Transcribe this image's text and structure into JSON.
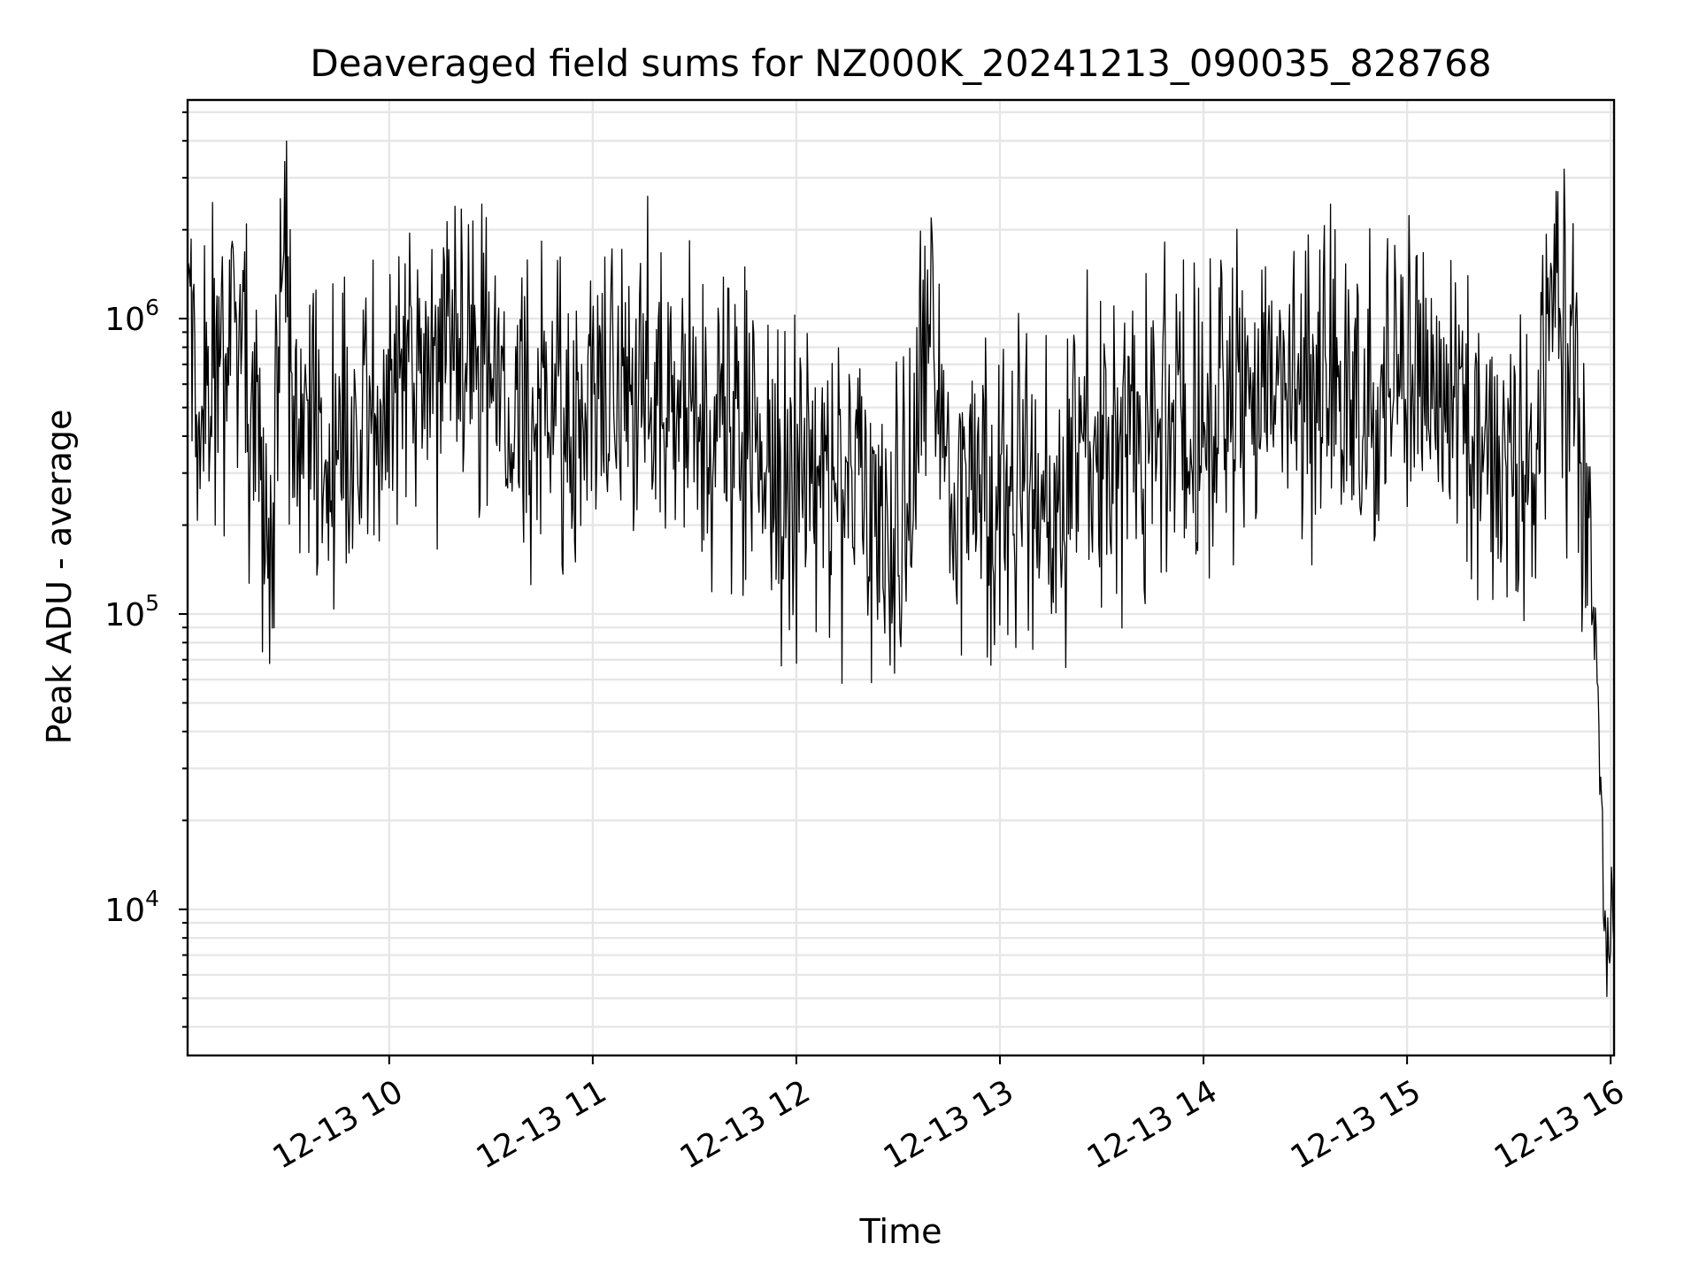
{
  "chart_data": {
    "type": "line",
    "title": "Deaveraged field sums for NZ000K_20241213_090035_828768",
    "xlabel": "Time",
    "ylabel": "Peak ADU - average",
    "yscale": "log",
    "grid": "on",
    "xlim": [
      "2024-12-13 09:00:35",
      "2024-12-13 16:01:00"
    ],
    "ylim": [
      3200,
      5500000
    ],
    "x_tick_labels": [
      "12-13 10",
      "12-13 11",
      "12-13 12",
      "12-13 13",
      "12-13 14",
      "12-13 15",
      "12-13 16"
    ],
    "x_tick_hours": [
      10,
      11,
      12,
      13,
      14,
      15,
      16
    ],
    "y_ticks": [
      {
        "base": "10",
        "exp": "4",
        "value": 10000
      },
      {
        "base": "10",
        "exp": "5",
        "value": 100000
      },
      {
        "base": "10",
        "exp": "6",
        "value": 1000000
      }
    ],
    "series": [
      {
        "color": "#000000",
        "x": [
          "09:00",
          "09:05",
          "09:10",
          "09:15",
          "09:20",
          "09:23",
          "09:25",
          "09:28",
          "09:30",
          "09:32",
          "09:35",
          "09:38",
          "09:40",
          "09:45",
          "09:50",
          "09:55",
          "10:00",
          "10:05",
          "10:10",
          "10:15",
          "10:20",
          "10:25",
          "10:30",
          "10:35",
          "10:40",
          "10:45",
          "10:50",
          "10:55",
          "11:00",
          "11:05",
          "11:10",
          "11:15",
          "11:20",
          "11:25",
          "11:30",
          "11:35",
          "11:40",
          "11:45",
          "11:50",
          "11:55",
          "12:00",
          "12:05",
          "12:10",
          "12:15",
          "12:20",
          "12:25",
          "12:30",
          "12:35",
          "12:40",
          "12:45",
          "12:50",
          "12:55",
          "13:00",
          "13:05",
          "13:10",
          "13:15",
          "13:20",
          "13:25",
          "13:30",
          "13:35",
          "13:40",
          "13:45",
          "13:50",
          "13:55",
          "14:00",
          "14:05",
          "14:10",
          "14:15",
          "14:20",
          "14:25",
          "14:30",
          "14:35",
          "14:40",
          "14:45",
          "14:50",
          "14:55",
          "15:00",
          "15:05",
          "15:10",
          "15:15",
          "15:20",
          "15:25",
          "15:30",
          "15:35",
          "15:38",
          "15:40",
          "15:42",
          "15:45",
          "15:47",
          "15:50",
          "15:52",
          "15:54",
          "15:56",
          "15:58",
          "16:00"
        ],
        "y": [
          650000,
          700000,
          580000,
          720000,
          600000,
          180000,
          110000,
          1400000,
          1100000,
          500000,
          350000,
          450000,
          300000,
          400000,
          350000,
          450000,
          500000,
          650000,
          700000,
          800000,
          750000,
          600000,
          650000,
          550000,
          450000,
          420000,
          500000,
          480000,
          550000,
          500000,
          450000,
          600000,
          520000,
          500000,
          600000,
          400000,
          420000,
          450000,
          300000,
          250000,
          300000,
          350000,
          220000,
          280000,
          250000,
          200000,
          180000,
          350000,
          700000,
          280000,
          250000,
          300000,
          200000,
          350000,
          280000,
          250000,
          300000,
          450000,
          350000,
          400000,
          400000,
          500000,
          420000,
          380000,
          450000,
          550000,
          500000,
          600000,
          650000,
          550000,
          500000,
          600000,
          520000,
          480000,
          550000,
          500000,
          550000,
          650000,
          500000,
          450000,
          480000,
          350000,
          300000,
          250000,
          350000,
          700000,
          1200000,
          1500000,
          700000,
          800000,
          300000,
          150000,
          60000,
          10000,
          9000
        ]
      }
    ]
  }
}
